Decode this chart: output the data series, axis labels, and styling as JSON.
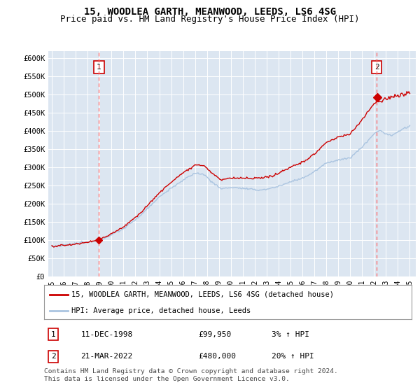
{
  "title": "15, WOODLEA GARTH, MEANWOOD, LEEDS, LS6 4SG",
  "subtitle": "Price paid vs. HM Land Registry's House Price Index (HPI)",
  "ylim": [
    0,
    620000
  ],
  "yticks": [
    0,
    50000,
    100000,
    150000,
    200000,
    250000,
    300000,
    350000,
    400000,
    450000,
    500000,
    550000,
    600000
  ],
  "ytick_labels": [
    "£0",
    "£50K",
    "£100K",
    "£150K",
    "£200K",
    "£250K",
    "£300K",
    "£350K",
    "£400K",
    "£450K",
    "£500K",
    "£550K",
    "£600K"
  ],
  "xlim_start": 1994.7,
  "xlim_end": 2025.5,
  "background_color": "#dce6f1",
  "grid_color": "#ffffff",
  "line_color_property": "#cc0000",
  "line_color_hpi": "#aac4e0",
  "purchase1_year": 1998.95,
  "purchase1_price": 99950,
  "purchase2_year": 2022.22,
  "purchase2_price": 480000,
  "legend_label_property": "15, WOODLEA GARTH, MEANWOOD, LEEDS, LS6 4SG (detached house)",
  "legend_label_hpi": "HPI: Average price, detached house, Leeds",
  "table_row1": [
    "1",
    "11-DEC-1998",
    "£99,950",
    "3% ↑ HPI"
  ],
  "table_row2": [
    "2",
    "21-MAR-2022",
    "£480,000",
    "20% ↑ HPI"
  ],
  "footnote": "Contains HM Land Registry data © Crown copyright and database right 2024.\nThis data is licensed under the Open Government Licence v3.0.",
  "title_fontsize": 10,
  "subtitle_fontsize": 9
}
